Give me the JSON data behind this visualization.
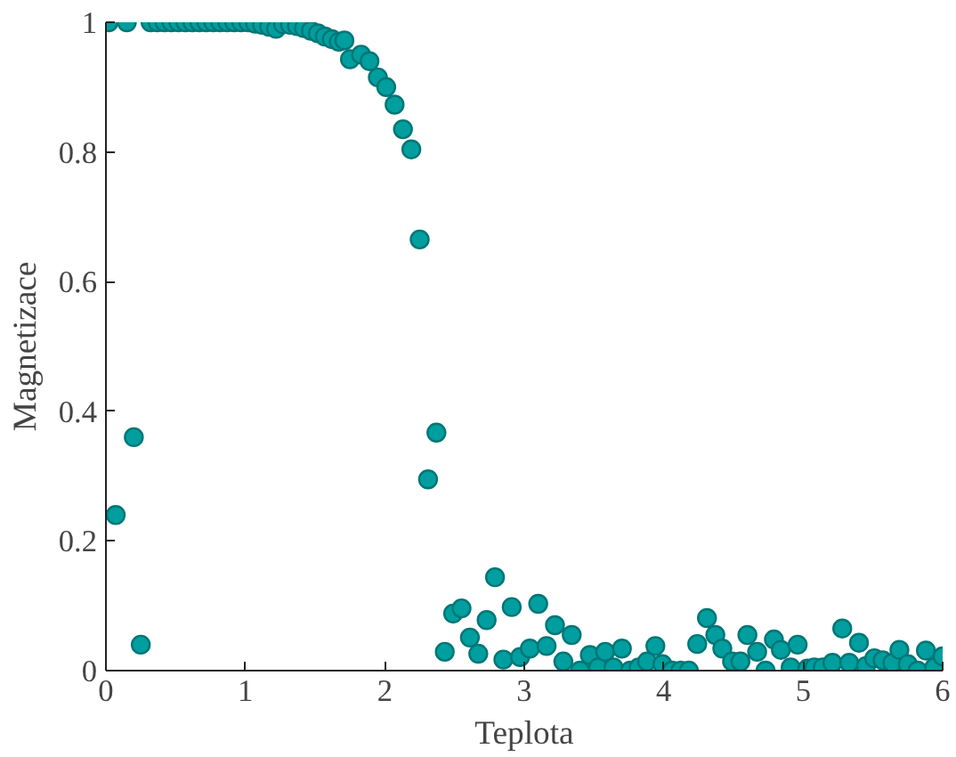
{
  "chart_data": {
    "type": "scatter",
    "xlabel": "Teplota",
    "ylabel": "Magnetizace",
    "xlim": [
      0,
      6
    ],
    "ylim": [
      0,
      1
    ],
    "xticks": [
      0,
      1,
      2,
      3,
      4,
      5,
      6
    ],
    "yticks": [
      0,
      {
        "value": 0.2,
        "label": "0.2"
      },
      {
        "value": 0.4,
        "label": "0.4"
      },
      {
        "value": 0.6,
        "label": "0.6"
      },
      {
        "value": 0.8,
        "label": "0.8"
      },
      1
    ],
    "grid": false,
    "marker": "circle",
    "series": [
      {
        "color": "#009e9e",
        "x": [
          0.02,
          0.07,
          0.15,
          0.2,
          0.25,
          0.32,
          0.37,
          0.42,
          0.47,
          0.52,
          0.57,
          0.62,
          0.67,
          0.72,
          0.77,
          0.82,
          0.87,
          0.92,
          0.97,
          1.02,
          1.07,
          1.12,
          1.17,
          1.22,
          1.27,
          1.32,
          1.37,
          1.42,
          1.47,
          1.52,
          1.57,
          1.62,
          1.67,
          1.71,
          1.75,
          1.83,
          1.89,
          1.95,
          2.01,
          2.07,
          2.13,
          2.19,
          2.25,
          2.31,
          2.37,
          2.43,
          2.49,
          2.55,
          2.61,
          2.67,
          2.73,
          2.79,
          2.85,
          2.91,
          2.97,
          3.04,
          3.1,
          3.16,
          3.22,
          3.28,
          3.34,
          3.4,
          3.47,
          3.53,
          3.58,
          3.64,
          3.7,
          3.76,
          3.82,
          3.88,
          3.94,
          3.99,
          4.06,
          4.12,
          4.18,
          4.24,
          4.31,
          4.37,
          4.42,
          4.49,
          4.55,
          4.6,
          4.67,
          4.73,
          4.79,
          4.84,
          4.91,
          4.96,
          5.03,
          5.08,
          5.14,
          5.21,
          5.28,
          5.33,
          5.4,
          5.45,
          5.51,
          5.57,
          5.64,
          5.69,
          5.75,
          5.82,
          5.88,
          5.94,
          6.0
        ],
        "values": [
          1.0,
          0.24,
          1.0,
          0.36,
          0.04,
          1.0,
          1.0,
          1.0,
          1.0,
          1.0,
          1.0,
          1.0,
          1.0,
          1.0,
          1.0,
          1.0,
          1.0,
          1.0,
          1.0,
          1.0,
          0.998,
          0.996,
          0.993,
          0.99,
          0.997,
          0.996,
          0.994,
          0.991,
          0.987,
          0.983,
          0.978,
          0.974,
          0.97,
          0.972,
          0.943,
          0.95,
          0.94,
          0.915,
          0.9,
          0.873,
          0.835,
          0.804,
          0.665,
          0.295,
          0.367,
          0.029,
          0.088,
          0.096,
          0.051,
          0.026,
          0.078,
          0.144,
          0.017,
          0.098,
          0.021,
          0.034,
          0.103,
          0.038,
          0.07,
          0.014,
          0.055,
          0.0,
          0.024,
          0.005,
          0.029,
          0.005,
          0.034,
          0.0,
          0.005,
          0.014,
          0.038,
          0.01,
          0.0,
          0.0,
          0.0,
          0.041,
          0.081,
          0.055,
          0.034,
          0.014,
          0.014,
          0.055,
          0.029,
          0.0,
          0.048,
          0.032,
          0.005,
          0.04,
          0.003,
          0.005,
          0.005,
          0.012,
          0.065,
          0.012,
          0.043,
          0.007,
          0.019,
          0.016,
          0.012,
          0.032,
          0.01,
          0.0,
          0.031,
          0.005,
          0.022
        ]
      }
    ]
  }
}
